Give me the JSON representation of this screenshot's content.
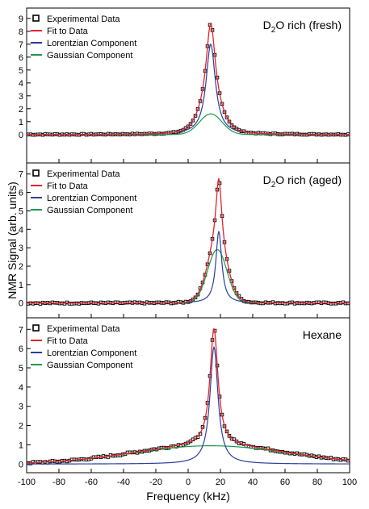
{
  "figure": {
    "xlabel": "Frequency (kHz)",
    "ylabel": "NMR Signal (arb. units)",
    "xlim": [
      -100,
      100
    ],
    "xticks": [
      -100,
      -80,
      -60,
      -40,
      -20,
      0,
      20,
      40,
      60,
      80,
      100
    ],
    "legend": [
      "Experimental Data",
      "Fit to Data",
      "Lorentzian Component",
      "Gaussian Component"
    ],
    "colors": {
      "data": "#000000",
      "fit": "#e8202a",
      "lorentzian": "#2b3f9e",
      "gaussian": "#1a9a4a"
    }
  },
  "chart_data": [
    {
      "type": "scatter",
      "title_main": "D",
      "title_sub": "2",
      "title_rest": "O rich (fresh)",
      "legend_placement": "top-left",
      "ylim": [
        -2.2,
        9.8
      ],
      "yticks": [
        0,
        1,
        2,
        3,
        4,
        5,
        6,
        7,
        8,
        9
      ],
      "lorentzian": {
        "center": 14,
        "amplitude": 7.0,
        "hwhm": 3.5
      },
      "gaussian": {
        "center": 14,
        "amplitude": 1.6,
        "sigma": 7
      },
      "baseline": 0.0,
      "noise": 0.04
    },
    {
      "type": "scatter",
      "title_main": "D",
      "title_sub": "2",
      "title_rest": "O rich (aged)",
      "legend_placement": "top-left",
      "ylim": [
        -0.8,
        7.6
      ],
      "yticks": [
        0,
        1,
        2,
        3,
        4,
        5,
        6,
        7
      ],
      "lorentzian": {
        "center": 19,
        "amplitude": 3.9,
        "hwhm": 2.2
      },
      "gaussian": {
        "center": 18,
        "amplitude": 2.9,
        "sigma": 6
      },
      "baseline": 0.0,
      "noise": 0.04
    },
    {
      "type": "scatter",
      "title_main": "Hexane",
      "title_sub": "",
      "title_rest": "",
      "legend_placement": "top-left",
      "ylim": [
        -0.45,
        7.6
      ],
      "yticks": [
        0,
        1,
        2,
        3,
        4,
        5,
        6,
        7
      ],
      "lorentzian": {
        "center": 16,
        "amplitude": 6.1,
        "hwhm": 3.0
      },
      "gaussian": {
        "center": 14,
        "amplitude": 0.95,
        "sigma": 48
      },
      "baseline": 0.0,
      "noise": 0.05
    }
  ]
}
